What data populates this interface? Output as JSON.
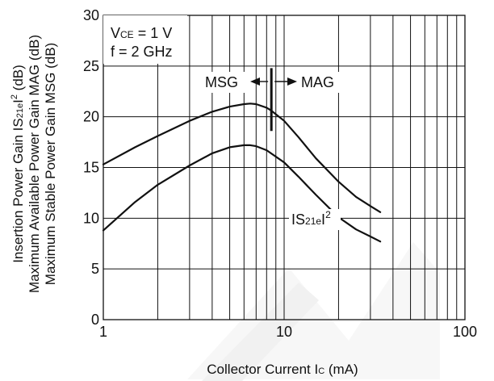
{
  "chart_data": {
    "type": "line",
    "xscale": "log",
    "xlim": [
      1,
      100
    ],
    "ylim": [
      0,
      30
    ],
    "grid": true,
    "xticks": [
      {
        "value": 1,
        "label": "1"
      },
      {
        "value": 10,
        "label": "10"
      },
      {
        "value": 100,
        "label": "100"
      }
    ],
    "yticks": [
      {
        "value": 0,
        "label": "0"
      },
      {
        "value": 5,
        "label": "5"
      },
      {
        "value": 10,
        "label": "10"
      },
      {
        "value": 15,
        "label": "15"
      },
      {
        "value": 20,
        "label": "20"
      },
      {
        "value": 25,
        "label": "25"
      },
      {
        "value": 30,
        "label": "30"
      }
    ],
    "xlabel": {
      "main": "Collector Current  I",
      "sub": "C",
      "unit": " (mA)"
    },
    "ylabel_lines": [
      {
        "pre": "Insertion Power Gain  IS",
        "sub": "21e",
        "post": "I",
        "sup": "2",
        "end": " (dB)"
      },
      {
        "pre": "Maximum Available Power Gain  MAG (dB)",
        "sub": "",
        "post": "",
        "sup": "",
        "end": ""
      },
      {
        "pre": "Maximum Stable Power Gain  MSG (dB)",
        "sub": "",
        "post": "",
        "sup": "",
        "end": ""
      }
    ],
    "conditions": {
      "vce": {
        "pre": "V",
        "sub": "CE",
        "post": " = 1 V"
      },
      "freq": "f = 2 GHz"
    },
    "annotations": {
      "msg": "MSG",
      "mag": "MAG",
      "s21": {
        "pre": "IS",
        "sub": "21e",
        "post": "I",
        "sup": "2"
      },
      "boundary_x": 8.5,
      "boundary_y": [
        18.6,
        24.8
      ]
    },
    "series": [
      {
        "x": [
          1,
          1.5,
          2,
          3,
          4,
          5,
          6,
          6.5,
          7,
          8,
          8.5,
          10,
          12,
          15,
          20,
          25,
          30,
          34
        ],
        "y": [
          15.3,
          17.0,
          18.1,
          19.6,
          20.5,
          21.0,
          21.25,
          21.3,
          21.25,
          20.9,
          20.6,
          19.6,
          18.0,
          15.9,
          13.6,
          12.1,
          11.2,
          10.6
        ]
      },
      {
        "x": [
          1,
          1.5,
          2,
          3,
          4,
          5,
          6,
          6.5,
          7,
          8,
          10,
          12,
          15,
          20,
          25,
          30,
          34
        ],
        "y": [
          8.8,
          11.6,
          13.3,
          15.2,
          16.4,
          17.0,
          17.2,
          17.2,
          17.1,
          16.7,
          15.5,
          14.1,
          12.3,
          10.1,
          8.9,
          8.2,
          7.7
        ]
      }
    ]
  }
}
